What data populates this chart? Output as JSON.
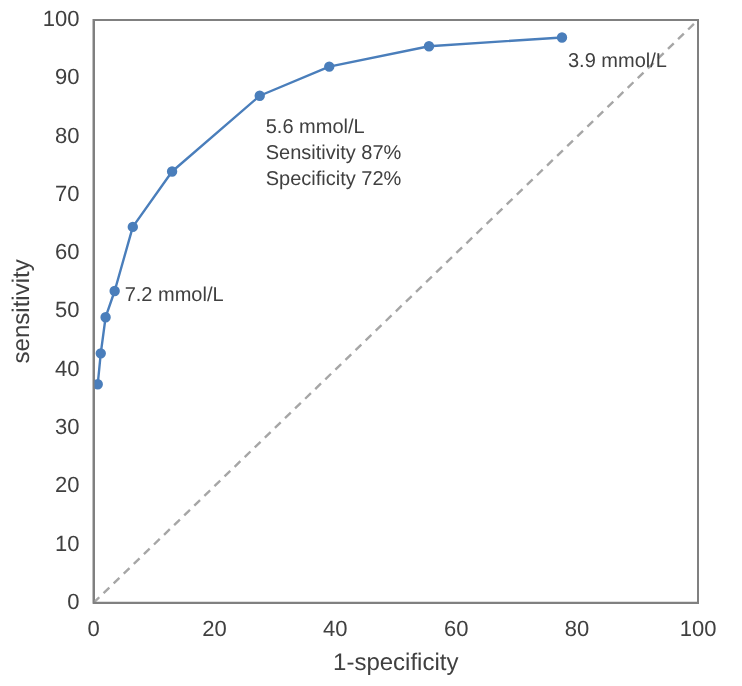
{
  "chart_data": {
    "type": "line",
    "xlabel": "1-specificity",
    "ylabel": "sensitivity",
    "series": [
      {
        "color": "#4a7ebb",
        "marker": "circle",
        "line_style": "solid",
        "x": [
          0.7,
          1.2,
          2,
          3.5,
          6.5,
          13,
          27.5,
          39,
          55.5,
          77.5
        ],
        "values": [
          37.5,
          42.8,
          49,
          53.5,
          64.5,
          74,
          87,
          92,
          95.5,
          97
        ]
      },
      {
        "type": "line",
        "color": "#a6a6a6",
        "marker": "none",
        "line_style": "dashed",
        "x": [
          0,
          100
        ],
        "values": [
          0,
          100
        ]
      }
    ],
    "xlim": [
      0,
      100
    ],
    "xticks": [
      0,
      20,
      40,
      60,
      80,
      100
    ],
    "ylim": [
      0,
      100
    ],
    "yticks": [
      0,
      10,
      20,
      30,
      40,
      50,
      60,
      70,
      80,
      90,
      100
    ],
    "grid": false,
    "legend": false,
    "annotations": [
      {
        "text": "7.2 mmol/L",
        "x": 3.5,
        "y": 53.5
      },
      {
        "text": "5.6 mmol/L",
        "x": 27.5,
        "y": 87
      },
      "Sensitivity 87%",
      "Specificity 72%",
      {
        "text": "3.9 mmol/L",
        "x": 77.5,
        "y": 97
      }
    ]
  }
}
